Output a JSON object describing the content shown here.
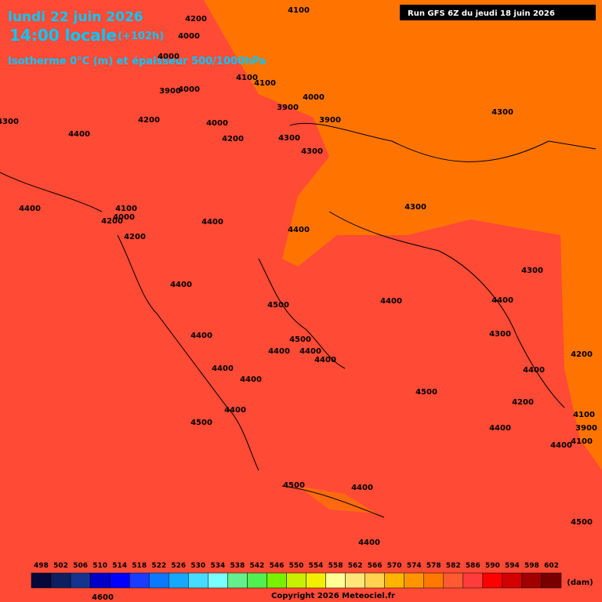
{
  "header": {
    "date": "lundi 22 juin 2026",
    "time": "14:00 locale",
    "lead": "(+102h)",
    "subtitle": "Isotherme 0°C (m) et épaisseur 500/1000hPa",
    "run": "Run GFS 6Z du jeudi 18 juin 2026"
  },
  "contour_labels": [
    4200,
    4000,
    4100,
    4000,
    4100,
    4100,
    3900,
    4000,
    3900,
    4000,
    3900,
    4200,
    4000,
    4300,
    4400,
    4200,
    4300,
    4300,
    4300,
    4400,
    4100,
    4000,
    4200,
    4200,
    4400,
    4400,
    4300,
    4300,
    4400,
    4500,
    4400,
    4400,
    4300,
    4400,
    4500,
    4400,
    4400,
    4400,
    4400,
    4400,
    4400,
    4200,
    4500,
    4400,
    4500,
    4200,
    4400,
    4100,
    3900,
    4400,
    4100,
    4500,
    4400,
    4500,
    4400,
    4600
  ],
  "legend": {
    "values": [
      498,
      502,
      506,
      510,
      514,
      518,
      522,
      526,
      530,
      534,
      538,
      542,
      546,
      550,
      554,
      558,
      562,
      566,
      570,
      574,
      578,
      582,
      586,
      590,
      594,
      598,
      602
    ],
    "colors": [
      "#06083a",
      "#0c2060",
      "#143490",
      "#0000c8",
      "#0000ff",
      "#1a3cff",
      "#0a78ff",
      "#14a8ff",
      "#46dcff",
      "#78ffff",
      "#64f08c",
      "#50f050",
      "#78f000",
      "#c8f000",
      "#f0f000",
      "#ffff96",
      "#ffe678",
      "#ffd250",
      "#ffb400",
      "#ff9600",
      "#ff7800",
      "#ff5a32",
      "#ff3c3c",
      "#ff0000",
      "#d20000",
      "#a00000",
      "#780000"
    ],
    "unit": "(dam)"
  },
  "footer": {
    "copyright": "Copyright 2026 Meteociel.fr"
  }
}
